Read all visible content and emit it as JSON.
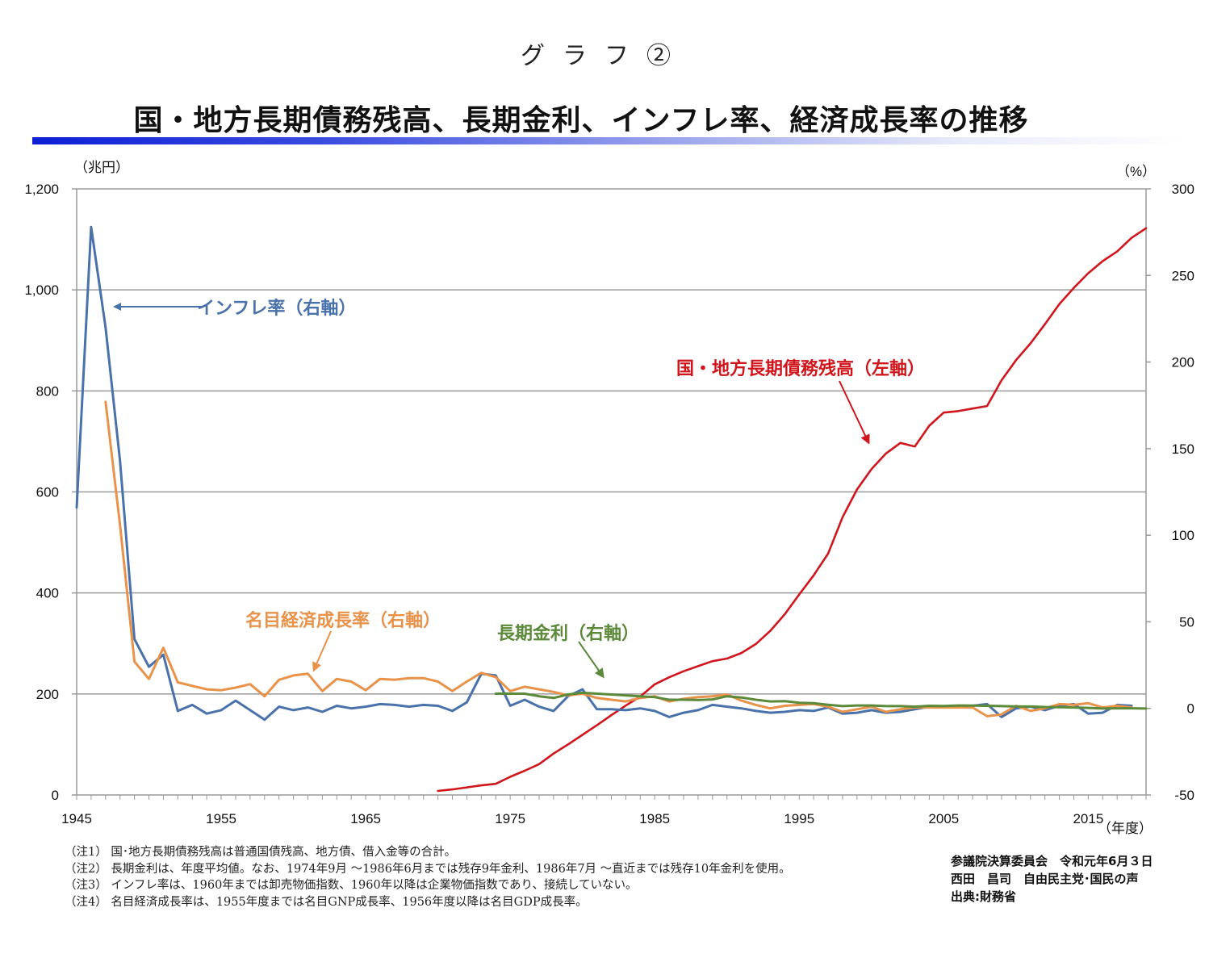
{
  "header": {
    "graph_number": "グラフ②",
    "title": "国・地方長期債務残高、長期金利、インフレ率、経済成長率の推移"
  },
  "chart_data": {
    "type": "line",
    "title": "国・地方長期債務残高、長期金利、インフレ率、経済成長率の推移",
    "xlabel": "（年度）",
    "ylabel_left": "（兆円）",
    "ylabel_right": "（%）",
    "x_range": [
      1945,
      2019
    ],
    "x_ticks": [
      "1945",
      "1955",
      "1965",
      "1975",
      "1985",
      "1995",
      "2005",
      "2015"
    ],
    "y_left_range": [
      0,
      1200
    ],
    "y_left_ticks": [
      "0",
      "200",
      "400",
      "600",
      "800",
      "1,000",
      "1,200"
    ],
    "y_right_range": [
      -50,
      300
    ],
    "y_right_ticks": [
      "-50",
      "0",
      "50",
      "100",
      "150",
      "200",
      "250",
      "300"
    ],
    "grid": true,
    "series": [
      {
        "name": "国・地方長期債務残高",
        "label": "国・地方長期債務残高（左軸）",
        "axis": "left",
        "color": "#d0161c",
        "points": [
          [
            1970,
            8
          ],
          [
            1971,
            11
          ],
          [
            1972,
            15
          ],
          [
            1973,
            19
          ],
          [
            1974,
            22
          ],
          [
            1975,
            36
          ],
          [
            1976,
            48
          ],
          [
            1977,
            61
          ],
          [
            1978,
            82
          ],
          [
            1979,
            100
          ],
          [
            1980,
            119
          ],
          [
            1981,
            138
          ],
          [
            1982,
            158
          ],
          [
            1983,
            177
          ],
          [
            1984,
            195
          ],
          [
            1985,
            219
          ],
          [
            1986,
            233
          ],
          [
            1987,
            245
          ],
          [
            1988,
            255
          ],
          [
            1989,
            265
          ],
          [
            1990,
            270
          ],
          [
            1991,
            281
          ],
          [
            1992,
            299
          ],
          [
            1993,
            325
          ],
          [
            1994,
            358
          ],
          [
            1995,
            397
          ],
          [
            1996,
            435
          ],
          [
            1997,
            478
          ],
          [
            1998,
            550
          ],
          [
            1999,
            605
          ],
          [
            2000,
            645
          ],
          [
            2001,
            676
          ],
          [
            2002,
            697
          ],
          [
            2003,
            690
          ],
          [
            2004,
            731
          ],
          [
            2005,
            757
          ],
          [
            2006,
            760
          ],
          [
            2007,
            765
          ],
          [
            2008,
            770
          ],
          [
            2009,
            821
          ],
          [
            2010,
            861
          ],
          [
            2011,
            894
          ],
          [
            2012,
            932
          ],
          [
            2013,
            972
          ],
          [
            2014,
            1004
          ],
          [
            2015,
            1033
          ],
          [
            2016,
            1057
          ],
          [
            2017,
            1076
          ],
          [
            2018,
            1103
          ],
          [
            2019,
            1122
          ]
        ]
      },
      {
        "name": "インフレ率",
        "label": "インフレ率（右軸）",
        "axis": "right",
        "color": "#4a72aa",
        "points": [
          [
            1945,
            116
          ],
          [
            1946,
            278
          ],
          [
            1947,
            220
          ],
          [
            1948,
            143
          ],
          [
            1949,
            40
          ],
          [
            1950,
            24
          ],
          [
            1951,
            31
          ],
          [
            1952,
            -1.5
          ],
          [
            1953,
            2
          ],
          [
            1954,
            -3
          ],
          [
            1955,
            -1
          ],
          [
            1956,
            4.5
          ],
          [
            1957,
            -1
          ],
          [
            1958,
            -6.5
          ],
          [
            1959,
            1
          ],
          [
            1960,
            -1
          ],
          [
            1961,
            0.5
          ],
          [
            1962,
            -2
          ],
          [
            1963,
            1.5
          ],
          [
            1964,
            0
          ],
          [
            1965,
            1
          ],
          [
            1966,
            2.5
          ],
          [
            1967,
            2
          ],
          [
            1968,
            1
          ],
          [
            1969,
            2
          ],
          [
            1970,
            1.5
          ],
          [
            1971,
            -1.5
          ],
          [
            1972,
            3.5
          ],
          [
            1973,
            20
          ],
          [
            1974,
            19
          ],
          [
            1975,
            1.5
          ],
          [
            1976,
            5
          ],
          [
            1977,
            1
          ],
          [
            1978,
            -1.5
          ],
          [
            1979,
            7
          ],
          [
            1980,
            11
          ],
          [
            1981,
            -0.5
          ],
          [
            1982,
            -0.5
          ],
          [
            1983,
            -1
          ],
          [
            1984,
            0
          ],
          [
            1985,
            -1.5
          ],
          [
            1986,
            -5
          ],
          [
            1987,
            -2.5
          ],
          [
            1988,
            -1
          ],
          [
            1989,
            2
          ],
          [
            1990,
            1
          ],
          [
            1991,
            0
          ],
          [
            1992,
            -1.5
          ],
          [
            1993,
            -2.5
          ],
          [
            1994,
            -2
          ],
          [
            1995,
            -1
          ],
          [
            1996,
            -1.5
          ],
          [
            1997,
            0.5
          ],
          [
            1998,
            -3
          ],
          [
            1999,
            -2.5
          ],
          [
            2000,
            -1
          ],
          [
            2001,
            -2.5
          ],
          [
            2002,
            -2
          ],
          [
            2003,
            -0.5
          ],
          [
            2004,
            1
          ],
          [
            2005,
            1
          ],
          [
            2006,
            1
          ],
          [
            2007,
            1.5
          ],
          [
            2008,
            2.5
          ],
          [
            2009,
            -5
          ],
          [
            2010,
            0
          ],
          [
            2011,
            1
          ],
          [
            2012,
            -1
          ],
          [
            2013,
            1.5
          ],
          [
            2014,
            2.5
          ],
          [
            2015,
            -3
          ],
          [
            2016,
            -2.5
          ],
          [
            2017,
            2
          ],
          [
            2018,
            1.5
          ]
        ]
      },
      {
        "name": "名目経済成長率",
        "label": "名目経済成長率（右軸）",
        "axis": "right",
        "color": "#e8924a",
        "points": [
          [
            1947,
            177
          ],
          [
            1948,
            106
          ],
          [
            1949,
            27
          ],
          [
            1950,
            17
          ],
          [
            1951,
            35
          ],
          [
            1952,
            15
          ],
          [
            1953,
            13
          ],
          [
            1954,
            11
          ],
          [
            1955,
            10.5
          ],
          [
            1956,
            12
          ],
          [
            1957,
            14
          ],
          [
            1958,
            7
          ],
          [
            1959,
            16.5
          ],
          [
            1960,
            19
          ],
          [
            1961,
            20
          ],
          [
            1962,
            10
          ],
          [
            1963,
            17
          ],
          [
            1964,
            15.5
          ],
          [
            1965,
            10.5
          ],
          [
            1966,
            17
          ],
          [
            1967,
            16.5
          ],
          [
            1968,
            17.5
          ],
          [
            1969,
            17.5
          ],
          [
            1970,
            15.5
          ],
          [
            1971,
            10
          ],
          [
            1972,
            15.5
          ],
          [
            1973,
            20.5
          ],
          [
            1974,
            18
          ],
          [
            1975,
            10
          ],
          [
            1976,
            12.5
          ],
          [
            1977,
            11
          ],
          [
            1978,
            9.5
          ],
          [
            1979,
            7.5
          ],
          [
            1980,
            8.5
          ],
          [
            1981,
            6
          ],
          [
            1982,
            5
          ],
          [
            1983,
            4
          ],
          [
            1984,
            6
          ],
          [
            1985,
            7
          ],
          [
            1986,
            4
          ],
          [
            1987,
            5.5
          ],
          [
            1988,
            6.5
          ],
          [
            1989,
            7
          ],
          [
            1990,
            8
          ],
          [
            1991,
            4.5
          ],
          [
            1992,
            2
          ],
          [
            1993,
            0
          ],
          [
            1994,
            1.5
          ],
          [
            1995,
            2
          ],
          [
            1996,
            2.5
          ],
          [
            1997,
            1
          ],
          [
            1998,
            -2
          ],
          [
            1999,
            -0.5
          ],
          [
            2000,
            1
          ],
          [
            2001,
            -2
          ],
          [
            2002,
            -0.5
          ],
          [
            2003,
            0.5
          ],
          [
            2004,
            0.5
          ],
          [
            2005,
            0.5
          ],
          [
            2006,
            0.5
          ],
          [
            2007,
            0.5
          ],
          [
            2008,
            -4.5
          ],
          [
            2009,
            -3.5
          ],
          [
            2010,
            1.5
          ],
          [
            2011,
            -1.5
          ],
          [
            2012,
            0
          ],
          [
            2013,
            2.5
          ],
          [
            2014,
            2
          ],
          [
            2015,
            3
          ],
          [
            2016,
            0.5
          ],
          [
            2017,
            1.5
          ],
          [
            2018,
            0.5
          ]
        ]
      },
      {
        "name": "長期金利",
        "label": "長期金利（右軸）",
        "axis": "right",
        "color": "#5b8a3a",
        "points": [
          [
            1974,
            8.5
          ],
          [
            1975,
            8.5
          ],
          [
            1976,
            8.5
          ],
          [
            1977,
            7
          ],
          [
            1978,
            6
          ],
          [
            1979,
            8
          ],
          [
            1980,
            9
          ],
          [
            1981,
            8.5
          ],
          [
            1982,
            8
          ],
          [
            1983,
            7.5
          ],
          [
            1984,
            7
          ],
          [
            1985,
            6.5
          ],
          [
            1986,
            5
          ],
          [
            1987,
            5
          ],
          [
            1988,
            4.8
          ],
          [
            1989,
            5.2
          ],
          [
            1990,
            7
          ],
          [
            1991,
            6.3
          ],
          [
            1992,
            5
          ],
          [
            1993,
            4
          ],
          [
            1994,
            4.2
          ],
          [
            1995,
            3.2
          ],
          [
            1996,
            3
          ],
          [
            1997,
            2.1
          ],
          [
            1998,
            1.3
          ],
          [
            1999,
            1.7
          ],
          [
            2000,
            1.7
          ],
          [
            2001,
            1.3
          ],
          [
            2002,
            1.3
          ],
          [
            2003,
            1
          ],
          [
            2004,
            1.5
          ],
          [
            2005,
            1.4
          ],
          [
            2006,
            1.7
          ],
          [
            2007,
            1.6
          ],
          [
            2008,
            1.5
          ],
          [
            2009,
            1.3
          ],
          [
            2010,
            1.1
          ],
          [
            2011,
            1.1
          ],
          [
            2012,
            0.8
          ],
          [
            2013,
            0.7
          ],
          [
            2014,
            0.5
          ],
          [
            2015,
            0.3
          ],
          [
            2016,
            -0.1
          ],
          [
            2017,
            0.05
          ],
          [
            2018,
            0.05
          ],
          [
            2019,
            -0.1
          ]
        ]
      }
    ],
    "annotations": [
      {
        "text": "インフレ率（右軸）",
        "series": "インフレ率",
        "color": "#4a72aa"
      },
      {
        "text": "名目経済成長率（右軸）",
        "series": "名目経済成長率",
        "color": "#e8924a"
      },
      {
        "text": "長期金利（右軸）",
        "series": "長期金利",
        "color": "#5b8a3a"
      },
      {
        "text": "国・地方長期債務残高（左軸）",
        "series": "国・地方長期債務残高",
        "color": "#d0161c"
      }
    ]
  },
  "notes": [
    "（注1） 国･地方長期債務残高は普通国債残高、地方債、借入金等の合計。",
    "（注2） 長期金利は、年度平均値。なお、1974年9月 ～1986年6月までは残存9年金利、1986年7月 ～直近までは残存10年金利を使用。",
    "（注3） インフレ率は、1960年までは卸売物価指数、1960年以降は企業物価指数であり、接続していない。",
    "（注4） 名目経済成長率は、1955年度までは名目GNP成長率、1956年度以降は名目GDP成長率。"
  ],
  "source": [
    "参議院決算委員会　令和元年6月３日",
    "西田　昌司　自由民主党･国民の声",
    "出典:財務省"
  ]
}
